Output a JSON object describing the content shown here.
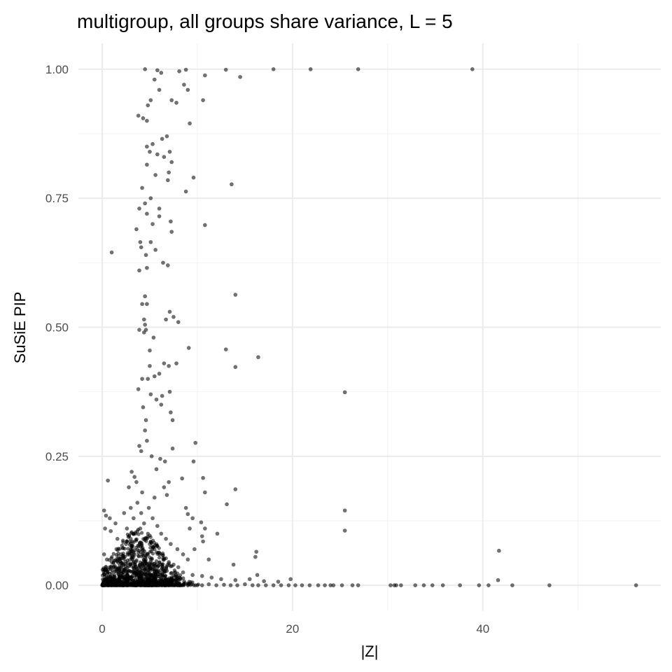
{
  "chart_data": {
    "type": "scatter",
    "title": "multigroup, all groups share variance, L = 5",
    "xlabel": "|Z|",
    "ylabel": "SuSiE PIP",
    "xlim": [
      -2.5,
      58.7
    ],
    "ylim": [
      -0.05,
      1.05
    ],
    "x_ticks": [
      0,
      20,
      40
    ],
    "x_tick_labels": [
      "0",
      "20",
      "40"
    ],
    "y_ticks": [
      0.0,
      0.25,
      0.5,
      0.75,
      1.0
    ],
    "y_tick_labels": [
      "0.00",
      "0.25",
      "0.50",
      "0.75",
      "1.00"
    ],
    "x_minor_ticks": [
      10,
      30,
      50
    ],
    "y_minor_ticks": [
      0.125,
      0.375,
      0.625,
      0.875
    ],
    "grid": true,
    "legend": "none",
    "point_color": "#000000",
    "point_alpha": 0.55,
    "points": [
      [
        4.5,
        1.0
      ],
      [
        5.8,
        0.998
      ],
      [
        6.2,
        0.993
      ],
      [
        8.1,
        0.996
      ],
      [
        8.8,
        0.999
      ],
      [
        10.8,
        0.988
      ],
      [
        13.0,
        0.999
      ],
      [
        14.5,
        0.985
      ],
      [
        18.0,
        1.0
      ],
      [
        21.9,
        1.0
      ],
      [
        26.9,
        1.0
      ],
      [
        38.9,
        1.0
      ],
      [
        5.5,
        0.98
      ],
      [
        6.0,
        0.96
      ],
      [
        5.1,
        0.94
      ],
      [
        4.8,
        0.93
      ],
      [
        7.3,
        0.94
      ],
      [
        7.8,
        0.935
      ],
      [
        8.6,
        0.97
      ],
      [
        9.0,
        0.96
      ],
      [
        10.6,
        0.94
      ],
      [
        3.8,
        0.91
      ],
      [
        4.3,
        0.905
      ],
      [
        4.7,
        0.9
      ],
      [
        9.2,
        0.895
      ],
      [
        6.8,
        0.87
      ],
      [
        6.3,
        0.865
      ],
      [
        5.3,
        0.855
      ],
      [
        4.7,
        0.85
      ],
      [
        5.0,
        0.84
      ],
      [
        5.8,
        0.835
      ],
      [
        6.5,
        0.83
      ],
      [
        7.1,
        0.84
      ],
      [
        7.3,
        0.82
      ],
      [
        4.7,
        0.815
      ],
      [
        5.6,
        0.795
      ],
      [
        7.0,
        0.8
      ],
      [
        6.9,
        0.785
      ],
      [
        9.6,
        0.79
      ],
      [
        13.6,
        0.777
      ],
      [
        8.8,
        0.763
      ],
      [
        4.2,
        0.77
      ],
      [
        3.9,
        0.73
      ],
      [
        4.5,
        0.74
      ],
      [
        5.1,
        0.75
      ],
      [
        4.7,
        0.72
      ],
      [
        6.0,
        0.73
      ],
      [
        6.0,
        0.715
      ],
      [
        7.2,
        0.705
      ],
      [
        5.3,
        0.7
      ],
      [
        7.3,
        0.685
      ],
      [
        3.6,
        0.69
      ],
      [
        10.8,
        0.698
      ],
      [
        4.0,
        0.665
      ],
      [
        4.1,
        0.655
      ],
      [
        5.1,
        0.665
      ],
      [
        5.6,
        0.65
      ],
      [
        4.6,
        0.64
      ],
      [
        6.4,
        0.625
      ],
      [
        6.9,
        0.62
      ],
      [
        4.7,
        0.615
      ],
      [
        3.9,
        0.61
      ],
      [
        1.0,
        0.645
      ],
      [
        4.5,
        0.56
      ],
      [
        4.2,
        0.545
      ],
      [
        4.7,
        0.545
      ],
      [
        7.1,
        0.53
      ],
      [
        7.5,
        0.52
      ],
      [
        6.7,
        0.515
      ],
      [
        4.4,
        0.515
      ],
      [
        4.5,
        0.505
      ],
      [
        4.6,
        0.495
      ],
      [
        3.9,
        0.495
      ],
      [
        5.4,
        0.48
      ],
      [
        8.0,
        0.51
      ],
      [
        4.4,
        0.49
      ],
      [
        5.0,
        0.455
      ],
      [
        9.1,
        0.46
      ],
      [
        13.0,
        0.457
      ],
      [
        14.0,
        0.423
      ],
      [
        14.0,
        0.563
      ],
      [
        16.4,
        0.442
      ],
      [
        25.5,
        0.374
      ],
      [
        6.5,
        0.43
      ],
      [
        7.0,
        0.425
      ],
      [
        5.0,
        0.425
      ],
      [
        7.8,
        0.43
      ],
      [
        6.0,
        0.41
      ],
      [
        5.5,
        0.405
      ],
      [
        4.8,
        0.4
      ],
      [
        4.2,
        0.4
      ],
      [
        3.8,
        0.38
      ],
      [
        7.1,
        0.375
      ],
      [
        5.1,
        0.37
      ],
      [
        6.3,
        0.367
      ],
      [
        5.7,
        0.36
      ],
      [
        6.2,
        0.35
      ],
      [
        4.3,
        0.345
      ],
      [
        7.2,
        0.335
      ],
      [
        7.4,
        0.32
      ],
      [
        4.6,
        0.32
      ],
      [
        4.5,
        0.3
      ],
      [
        4.7,
        0.28
      ],
      [
        3.9,
        0.27
      ],
      [
        4.1,
        0.26
      ],
      [
        5.2,
        0.25
      ],
      [
        6.1,
        0.245
      ],
      [
        7.4,
        0.265
      ],
      [
        6.6,
        0.24
      ],
      [
        5.7,
        0.225
      ],
      [
        9.8,
        0.276
      ],
      [
        9.6,
        0.24
      ],
      [
        8.4,
        0.207
      ],
      [
        10.6,
        0.208
      ],
      [
        10.8,
        0.18
      ],
      [
        14.0,
        0.186
      ],
      [
        13.1,
        0.157
      ],
      [
        0.6,
        0.203
      ],
      [
        3.1,
        0.22
      ],
      [
        3.4,
        0.21
      ],
      [
        2.8,
        0.19
      ],
      [
        3.6,
        0.2
      ],
      [
        4.2,
        0.18
      ],
      [
        5.5,
        0.17
      ],
      [
        6.8,
        0.175
      ],
      [
        6.5,
        0.19
      ],
      [
        7.0,
        0.2
      ],
      [
        8.8,
        0.15
      ],
      [
        9.0,
        0.138
      ],
      [
        9.5,
        0.13
      ],
      [
        9.2,
        0.11
      ],
      [
        10.4,
        0.122
      ],
      [
        10.8,
        0.11
      ],
      [
        10.5,
        0.095
      ],
      [
        10.6,
        0.085
      ],
      [
        12.1,
        0.1
      ],
      [
        25.5,
        0.145
      ],
      [
        25.5,
        0.106
      ],
      [
        0.2,
        0.145
      ],
      [
        0.4,
        0.135
      ],
      [
        0.8,
        0.13
      ],
      [
        1.4,
        0.12
      ],
      [
        0.3,
        0.11
      ],
      [
        0.9,
        0.105
      ],
      [
        1.6,
        0.09
      ],
      [
        2.3,
        0.14
      ],
      [
        2.6,
        0.11
      ],
      [
        3.0,
        0.15
      ],
      [
        3.3,
        0.13
      ],
      [
        3.7,
        0.16
      ],
      [
        4.1,
        0.14
      ],
      [
        4.4,
        0.12
      ],
      [
        4.9,
        0.15
      ],
      [
        5.3,
        0.13
      ],
      [
        5.8,
        0.115
      ],
      [
        6.2,
        0.1
      ],
      [
        6.7,
        0.09
      ],
      [
        7.2,
        0.08
      ],
      [
        7.9,
        0.07
      ],
      [
        8.5,
        0.06
      ],
      [
        9.7,
        0.07
      ],
      [
        9.0,
        0.05
      ],
      [
        11.2,
        0.05
      ],
      [
        13.8,
        0.04
      ],
      [
        16.2,
        0.065
      ],
      [
        16.1,
        0.055
      ],
      [
        41.7,
        0.067
      ],
      [
        41.6,
        0.01
      ],
      [
        0.2,
        0.06
      ],
      [
        0.5,
        0.05
      ],
      [
        1.0,
        0.045
      ],
      [
        1.5,
        0.07
      ],
      [
        2.0,
        0.06
      ],
      [
        2.5,
        0.08
      ],
      [
        3.0,
        0.09
      ],
      [
        3.5,
        0.1
      ],
      [
        4.0,
        0.11
      ],
      [
        4.5,
        0.09
      ],
      [
        5.0,
        0.08
      ],
      [
        5.5,
        0.07
      ],
      [
        6.0,
        0.06
      ],
      [
        6.5,
        0.05
      ],
      [
        7.0,
        0.045
      ],
      [
        7.5,
        0.04
      ],
      [
        8.0,
        0.035
      ],
      [
        0.4,
        0.03
      ],
      [
        1.2,
        0.035
      ],
      [
        2.2,
        0.04
      ],
      [
        3.2,
        0.05
      ],
      [
        4.2,
        0.06
      ],
      [
        5.2,
        0.04
      ],
      [
        6.2,
        0.03
      ],
      [
        8.5,
        0.025
      ],
      [
        9.5,
        0.02
      ],
      [
        10.5,
        0.018
      ],
      [
        11.5,
        0.015
      ],
      [
        12.5,
        0.012
      ],
      [
        14.0,
        0.01
      ],
      [
        15.5,
        0.012
      ],
      [
        16.3,
        0.02
      ],
      [
        17.0,
        0.008
      ],
      [
        18.5,
        0.007
      ],
      [
        19.8,
        0.012
      ],
      [
        0.0,
        0.0
      ],
      [
        0.3,
        0.005
      ],
      [
        0.6,
        0.0
      ],
      [
        1.0,
        0.008
      ],
      [
        1.4,
        0.002
      ],
      [
        1.8,
        0.012
      ],
      [
        2.2,
        0.0
      ],
      [
        2.6,
        0.006
      ],
      [
        3.0,
        0.015
      ],
      [
        3.4,
        0.003
      ],
      [
        3.8,
        0.02
      ],
      [
        4.2,
        0.008
      ],
      [
        4.6,
        0.012
      ],
      [
        5.0,
        0.0
      ],
      [
        5.4,
        0.018
      ],
      [
        5.8,
        0.004
      ],
      [
        6.2,
        0.01
      ],
      [
        6.6,
        0.0
      ],
      [
        7.0,
        0.006
      ],
      [
        7.4,
        0.0
      ],
      [
        7.8,
        0.004
      ],
      [
        8.2,
        0.0
      ],
      [
        8.6,
        0.003
      ],
      [
        9.0,
        0.0
      ],
      [
        9.4,
        0.002
      ],
      [
        9.8,
        0.0
      ],
      [
        10.5,
        0.0
      ],
      [
        11.2,
        0.002
      ],
      [
        12.0,
        0.0
      ],
      [
        12.8,
        0.001
      ],
      [
        13.5,
        0.0
      ],
      [
        14.2,
        0.0
      ],
      [
        15.0,
        0.002
      ],
      [
        15.8,
        0.0
      ],
      [
        16.4,
        0.0
      ],
      [
        17.2,
        0.0
      ],
      [
        18.0,
        0.0
      ],
      [
        18.8,
        0.0
      ],
      [
        19.6,
        0.0
      ],
      [
        20.3,
        0.0
      ],
      [
        21.0,
        0.0
      ],
      [
        21.8,
        0.0
      ],
      [
        22.7,
        0.0
      ],
      [
        23.4,
        0.0
      ],
      [
        24.0,
        0.0
      ],
      [
        24.3,
        0.0
      ],
      [
        25.2,
        0.0
      ],
      [
        26.3,
        0.0
      ],
      [
        26.9,
        0.0
      ],
      [
        30.3,
        0.0
      ],
      [
        30.7,
        0.0
      ],
      [
        30.9,
        0.0
      ],
      [
        31.4,
        0.0
      ],
      [
        32.9,
        0.0
      ],
      [
        33.8,
        0.0
      ],
      [
        34.7,
        0.0
      ],
      [
        35.8,
        0.0
      ],
      [
        37.6,
        0.0
      ],
      [
        39.6,
        0.0
      ],
      [
        40.6,
        0.0
      ],
      [
        43.1,
        0.0
      ],
      [
        47.0,
        0.0
      ],
      [
        56.1,
        0.0
      ]
    ]
  }
}
